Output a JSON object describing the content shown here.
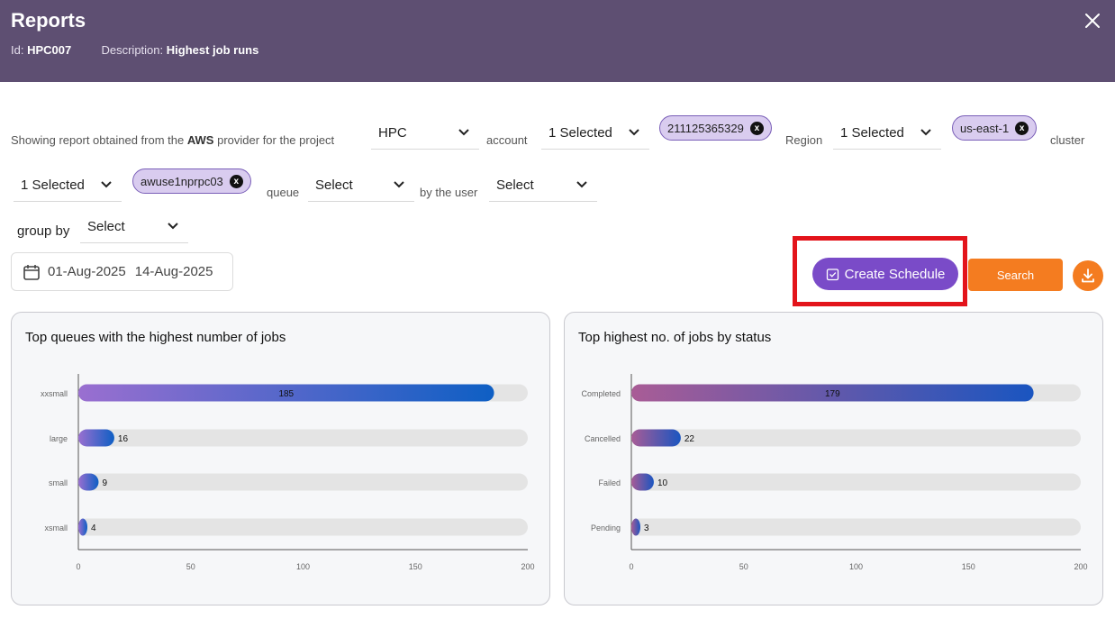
{
  "header": {
    "title": "Reports",
    "id_label": "Id:",
    "id_value": "HPC007",
    "desc_label": "Description:",
    "desc_value": "Highest job runs"
  },
  "filters": {
    "intro_pre": "Showing report obtained from the",
    "provider": "AWS",
    "intro_post": "provider for the project",
    "project": "HPC",
    "account_label": "account",
    "account_value": "1 Selected",
    "account_chip": "211125365329",
    "region_label": "Region",
    "region_value": "1 Selected",
    "region_chip": "us-east-1",
    "cluster_label": "cluster",
    "cluster_value": "1 Selected",
    "cluster_chip": "awuse1nprpc03",
    "queue_label": "queue",
    "queue_value": "Select",
    "user_label": "by the user",
    "user_value": "Select",
    "groupby_label": "group by",
    "groupby_value": "Select",
    "date_from": "01-Aug-2025",
    "date_to": "14-Aug-2025"
  },
  "actions": {
    "create_schedule": "Create Schedule",
    "search": "Search"
  },
  "colors": {
    "header_bg": "#5e4f72",
    "accent_purple": "#7a4bc8",
    "accent_orange": "#f47c20",
    "highlight_red": "#e3141b"
  },
  "chart_data": [
    {
      "type": "bar",
      "orientation": "horizontal",
      "title": "Top queues with the highest number of jobs",
      "categories": [
        "xxsmall",
        "large",
        "small",
        "xsmall"
      ],
      "values": [
        185,
        16,
        9,
        4
      ],
      "xlim": [
        0,
        200
      ],
      "xticks": [
        0,
        50,
        100,
        150,
        200
      ]
    },
    {
      "type": "bar",
      "orientation": "horizontal",
      "title": "Top highest no. of jobs by status",
      "categories": [
        "Completed",
        "Cancelled",
        "Failed",
        "Pending"
      ],
      "values": [
        179,
        22,
        10,
        3
      ],
      "xlim": [
        0,
        200
      ],
      "xticks": [
        0,
        50,
        100,
        150,
        200
      ]
    }
  ]
}
